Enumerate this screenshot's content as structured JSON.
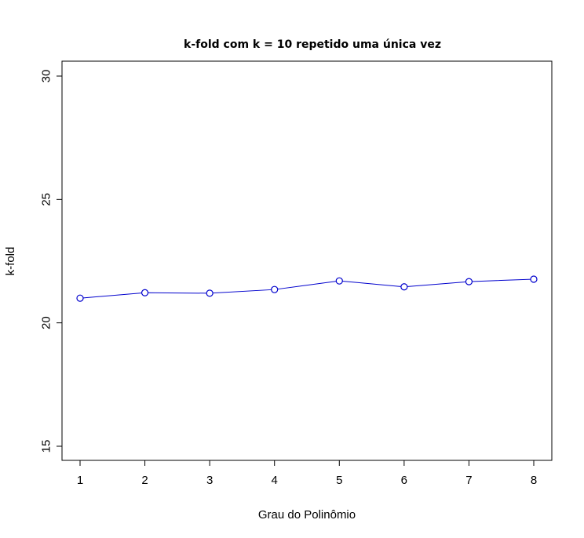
{
  "chart_data": {
    "type": "line",
    "title": "k-fold com k = 10 repetido uma única vez",
    "xlabel": "Grau do Polinômio",
    "ylabel": "k-fold",
    "x": [
      1,
      2,
      3,
      4,
      5,
      6,
      7,
      8
    ],
    "y": [
      21.0,
      21.22,
      21.2,
      21.35,
      21.7,
      21.46,
      21.67,
      21.77
    ],
    "xlim": [
      1,
      8
    ],
    "ylim": [
      15,
      30
    ],
    "xticks": [
      1,
      2,
      3,
      4,
      5,
      6,
      7,
      8
    ],
    "yticks": [
      15,
      20,
      25,
      30
    ],
    "line_color": "#0000cd",
    "marker": "open-circle",
    "grid": false
  }
}
